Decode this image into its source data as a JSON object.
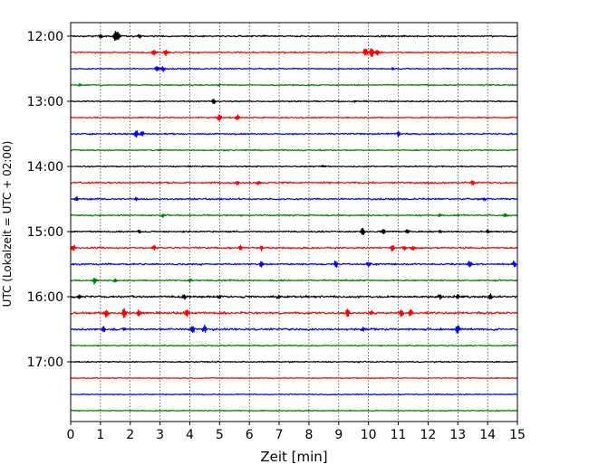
{
  "chart_data": {
    "type": "line",
    "title": "",
    "xlabel": "Zeit  [min]",
    "ylabel": "UTC (Lokalzeit = UTC + 02:00)",
    "xlim": [
      0,
      15
    ],
    "x_ticks": [
      0,
      1,
      2,
      3,
      4,
      5,
      6,
      7,
      8,
      9,
      10,
      11,
      12,
      13,
      14,
      15
    ],
    "x_tick_labels": [
      "0",
      "1",
      "2",
      "3",
      "4",
      "5",
      "6",
      "7",
      "8",
      "9",
      "10",
      "11",
      "12",
      "13",
      "14",
      "15"
    ],
    "y_ticks": [
      {
        "label": "12:00",
        "hour_index": 0
      },
      {
        "label": "13:00",
        "hour_index": 1
      },
      {
        "label": "14:00",
        "hour_index": 2
      },
      {
        "label": "15:00",
        "hour_index": 3
      },
      {
        "label": "16:00",
        "hour_index": 4
      },
      {
        "label": "17:00",
        "hour_index": 5
      }
    ],
    "grid_x": true,
    "colors": [
      "#000000",
      "#ff0000",
      "#0000ff",
      "#008000"
    ],
    "series": [
      {
        "start": "12:00",
        "color": "#000000",
        "noise": 0.35,
        "spikes": [
          [
            1.0,
            0.9
          ],
          [
            1.5,
            1.8
          ],
          [
            1.6,
            1.4
          ],
          [
            2.3,
            0.7
          ],
          [
            6.5,
            0.5
          ]
        ]
      },
      {
        "start": "12:15",
        "color": "#ff0000",
        "noise": 0.35,
        "spikes": [
          [
            2.8,
            1.4
          ],
          [
            3.2,
            1.2
          ],
          [
            9.9,
            1.5
          ],
          [
            10.1,
            1.8
          ],
          [
            10.3,
            1.3
          ]
        ]
      },
      {
        "start": "12:30",
        "color": "#0000ff",
        "noise": 0.3,
        "spikes": [
          [
            2.9,
            1.1
          ],
          [
            3.1,
            0.9
          ],
          [
            10.8,
            0.5
          ]
        ]
      },
      {
        "start": "12:45",
        "color": "#008000",
        "noise": 0.3,
        "spikes": [
          [
            0.3,
            0.5
          ],
          [
            5.0,
            0.4
          ]
        ]
      },
      {
        "start": "13:00",
        "color": "#000000",
        "noise": 0.3,
        "spikes": [
          [
            4.8,
            1.0
          ],
          [
            9.5,
            0.4
          ]
        ]
      },
      {
        "start": "13:15",
        "color": "#ff0000",
        "noise": 0.3,
        "spikes": [
          [
            5.0,
            1.2
          ],
          [
            5.6,
            1.0
          ]
        ]
      },
      {
        "start": "13:30",
        "color": "#0000ff",
        "noise": 0.35,
        "spikes": [
          [
            2.2,
            1.3
          ],
          [
            2.4,
            1.1
          ],
          [
            11.0,
            0.9
          ]
        ]
      },
      {
        "start": "13:45",
        "color": "#008000",
        "noise": 0.3,
        "spikes": [
          [
            3.0,
            0.4
          ]
        ]
      },
      {
        "start": "14:00",
        "color": "#000000",
        "noise": 0.3,
        "spikes": [
          [
            4.0,
            0.4
          ],
          [
            8.5,
            0.4
          ]
        ]
      },
      {
        "start": "14:15",
        "color": "#ff0000",
        "noise": 0.4,
        "spikes": [
          [
            5.6,
            0.9
          ],
          [
            6.3,
            0.7
          ],
          [
            13.5,
            0.9
          ]
        ]
      },
      {
        "start": "14:30",
        "color": "#0000ff",
        "noise": 0.4,
        "spikes": [
          [
            0.2,
            0.9
          ],
          [
            2.2,
            0.6
          ],
          [
            13.9,
            0.6
          ]
        ]
      },
      {
        "start": "14:45",
        "color": "#008000",
        "noise": 0.35,
        "spikes": [
          [
            3.1,
            0.6
          ],
          [
            12.4,
            0.6
          ],
          [
            14.6,
            0.8
          ]
        ]
      },
      {
        "start": "15:00",
        "color": "#000000",
        "noise": 0.35,
        "spikes": [
          [
            2.3,
            0.7
          ],
          [
            9.8,
            1.7
          ],
          [
            10.5,
            1.0
          ],
          [
            11.3,
            0.7
          ],
          [
            12.4,
            0.6
          ],
          [
            14.0,
            0.6
          ]
        ]
      },
      {
        "start": "15:15",
        "color": "#ff0000",
        "noise": 0.4,
        "spikes": [
          [
            0.1,
            1.2
          ],
          [
            2.8,
            0.8
          ],
          [
            5.7,
            0.8
          ],
          [
            6.4,
            0.9
          ],
          [
            10.8,
            1.2
          ],
          [
            11.2,
            1.0
          ],
          [
            11.5,
            0.8
          ]
        ]
      },
      {
        "start": "15:30",
        "color": "#0000ff",
        "noise": 0.4,
        "spikes": [
          [
            6.4,
            1.2
          ],
          [
            8.9,
            1.3
          ],
          [
            10.0,
            0.9
          ],
          [
            13.4,
            1.4
          ],
          [
            14.9,
            1.1
          ]
        ]
      },
      {
        "start": "15:45",
        "color": "#008000",
        "noise": 0.35,
        "spikes": [
          [
            0.8,
            1.4
          ],
          [
            1.5,
            0.7
          ],
          [
            4.0,
            0.6
          ]
        ]
      },
      {
        "start": "16:00",
        "color": "#000000",
        "noise": 0.5,
        "spikes": [
          [
            0.3,
            0.8
          ],
          [
            3.8,
            0.9
          ],
          [
            5.0,
            0.7
          ],
          [
            7.0,
            0.6
          ],
          [
            12.4,
            1.1
          ],
          [
            13.0,
            0.8
          ],
          [
            14.1,
            1.0
          ]
        ]
      },
      {
        "start": "16:15",
        "color": "#ff0000",
        "noise": 0.5,
        "spikes": [
          [
            1.2,
            1.6
          ],
          [
            1.8,
            1.8
          ],
          [
            2.3,
            1.5
          ],
          [
            3.9,
            1.3
          ],
          [
            9.3,
            1.6
          ],
          [
            10.1,
            0.9
          ],
          [
            11.1,
            1.4
          ],
          [
            11.4,
            1.2
          ]
        ]
      },
      {
        "start": "16:30",
        "color": "#0000ff",
        "noise": 0.5,
        "spikes": [
          [
            1.1,
            1.0
          ],
          [
            1.8,
            0.9
          ],
          [
            4.1,
            1.7
          ],
          [
            4.5,
            1.3
          ],
          [
            9.8,
            0.8
          ],
          [
            13.0,
            1.8
          ]
        ]
      },
      {
        "start": "16:45",
        "color": "#008000",
        "noise": 0.3,
        "spikes": []
      },
      {
        "start": "17:00",
        "color": "#000000",
        "noise": 0.28,
        "spikes": []
      },
      {
        "start": "17:15",
        "color": "#ff0000",
        "noise": 0.25,
        "spikes": []
      },
      {
        "start": "17:30",
        "color": "#0000ff",
        "noise": 0.25,
        "spikes": []
      },
      {
        "start": "17:45",
        "color": "#008000",
        "noise": 0.25,
        "spikes": []
      }
    ]
  }
}
